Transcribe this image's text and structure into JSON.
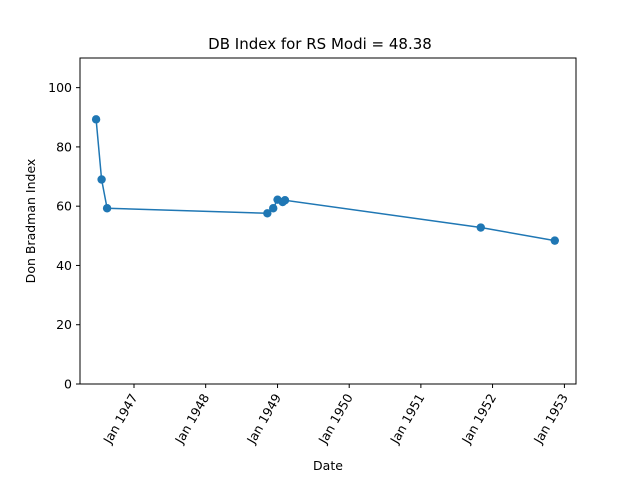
{
  "chart_data": {
    "type": "line",
    "title": "DB Index for RS Modi = 48.38",
    "xlabel": "Date",
    "ylabel": "Don Bradman Index",
    "xlim": [
      "1946-04-01",
      "1953-03-01"
    ],
    "ylim": [
      0,
      110
    ],
    "x_ticks": [
      "1947-01-01",
      "1948-01-01",
      "1949-01-01",
      "1950-01-01",
      "1951-01-01",
      "1952-01-01",
      "1953-01-01"
    ],
    "x_tick_labels": [
      "Jan 1947",
      "Jan 1948",
      "Jan 1949",
      "Jan 1950",
      "Jan 1951",
      "Jan 1952",
      "Jan 1953"
    ],
    "y_ticks": [
      0,
      20,
      40,
      60,
      80,
      100
    ],
    "y_tick_labels": [
      "0",
      "20",
      "40",
      "60",
      "80",
      "100"
    ],
    "grid": false,
    "color": "#1f77b4",
    "series": [
      {
        "x": [
          "1946-06-22",
          "1946-07-20",
          "1946-08-17",
          "1948-11-10",
          "1948-12-10",
          "1949-01-01",
          "1949-01-27",
          "1949-02-08",
          "1951-11-02",
          "1952-11-13"
        ],
        "y": [
          89.3,
          69.0,
          59.3,
          57.6,
          59.3,
          62.2,
          61.4,
          62.0,
          52.8,
          48.38
        ]
      }
    ]
  }
}
